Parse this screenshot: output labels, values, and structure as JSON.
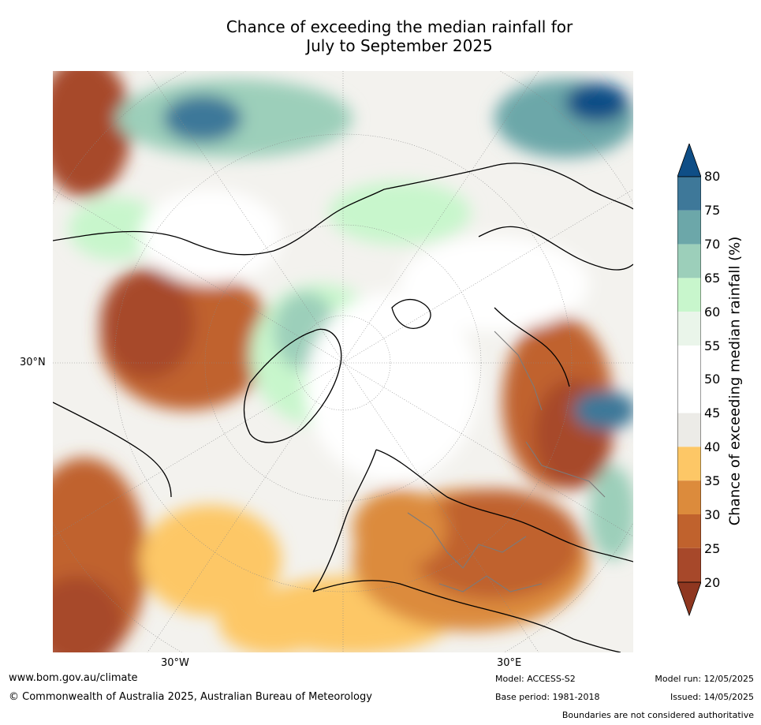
{
  "title_line1": "Chance of exceeding the median rainfall for",
  "title_line2": "July to September 2025",
  "map": {
    "lat_label": "30°N",
    "lon_label_west": "30°W",
    "lon_label_east": "30°E"
  },
  "legend": {
    "label": "Chance of exceeding median rainfall (%)",
    "ticks": [
      "80",
      "75",
      "70",
      "65",
      "60",
      "55",
      "50",
      "45",
      "40",
      "35",
      "30",
      "25",
      "20"
    ],
    "colors": {
      "above_80": "#0f4e86",
      "75_80": "#3e7899",
      "70_75": "#6ca7a9",
      "65_70": "#9ccfba",
      "60_65": "#c8f6cc",
      "55_60": "#eaf5ea",
      "45_55": "#ffffff",
      "40_45": "#ecebe7",
      "35_40": "#fdc766",
      "30_35": "#dc8b3c",
      "25_30": "#c0622d",
      "20_25": "#a7482a",
      "below_20": "#8f3720"
    }
  },
  "footer": {
    "website": "www.bom.gov.au/climate",
    "copyright": "© Commonwealth of Australia 2025, Australian Bureau of Meteorology",
    "model": "Model: ACCESS-S2",
    "base_period": "Base period: 1981-2018",
    "model_run": "Model run: 12/05/2025",
    "issued": "Issued: 14/05/2025",
    "disclaimer": "Boundaries are not considered authoritative"
  }
}
